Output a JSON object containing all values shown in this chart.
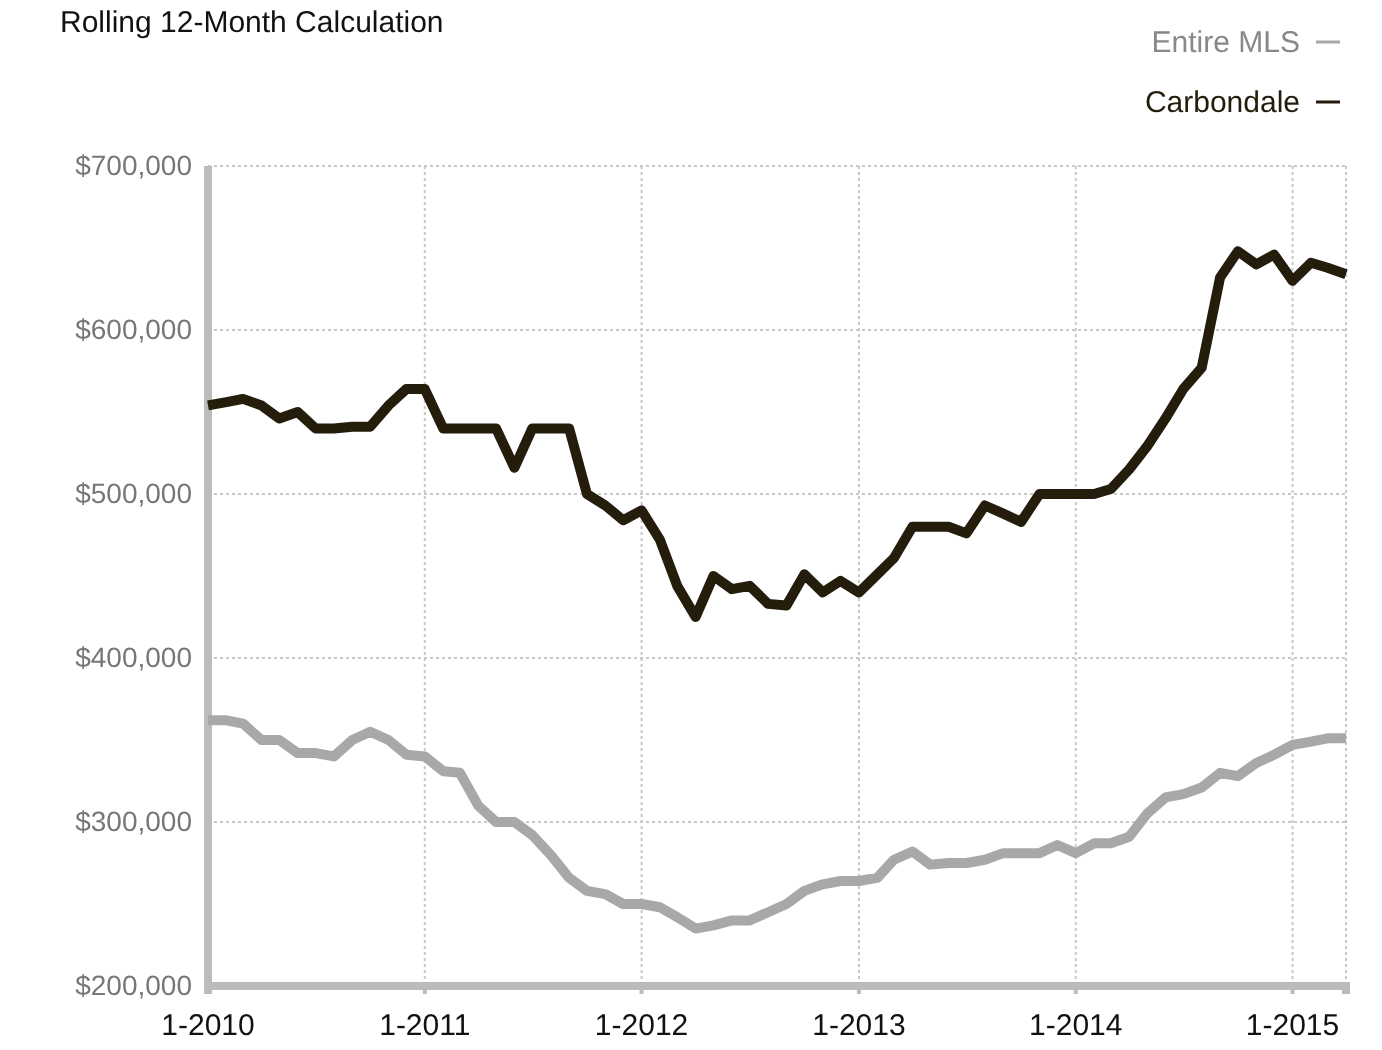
{
  "chart_data": {
    "type": "line",
    "title": "Rolling 12-Month Calculation",
    "x": [
      "2010-01",
      "2010-02",
      "2010-03",
      "2010-04",
      "2010-05",
      "2010-06",
      "2010-07",
      "2010-08",
      "2010-09",
      "2010-10",
      "2010-11",
      "2010-12",
      "2011-01",
      "2011-02",
      "2011-03",
      "2011-04",
      "2011-05",
      "2011-06",
      "2011-07",
      "2011-08",
      "2011-09",
      "2011-10",
      "2011-11",
      "2011-12",
      "2012-01",
      "2012-02",
      "2012-03",
      "2012-04",
      "2012-05",
      "2012-06",
      "2012-07",
      "2012-08",
      "2012-09",
      "2012-10",
      "2012-11",
      "2012-12",
      "2013-01",
      "2013-02",
      "2013-03",
      "2013-04",
      "2013-05",
      "2013-06",
      "2013-07",
      "2013-08",
      "2013-09",
      "2013-10",
      "2013-11",
      "2013-12",
      "2014-01",
      "2014-02",
      "2014-03",
      "2014-04",
      "2014-05",
      "2014-06",
      "2014-07",
      "2014-08",
      "2014-09",
      "2014-10",
      "2014-11",
      "2014-12",
      "2015-01",
      "2015-02",
      "2015-03",
      "2015-04"
    ],
    "series": [
      {
        "name": "Entire MLS",
        "color": "#a8a8a8",
        "values": [
          362000,
          362000,
          360000,
          350000,
          350000,
          342000,
          342000,
          340000,
          350000,
          355000,
          350000,
          341000,
          340000,
          331000,
          330000,
          310000,
          300000,
          300000,
          292000,
          280000,
          266000,
          258000,
          256000,
          250000,
          250000,
          248000,
          242000,
          235000,
          237000,
          240000,
          240000,
          245000,
          250000,
          258000,
          262000,
          264000,
          264000,
          266000,
          277000,
          282000,
          274000,
          275000,
          275000,
          277000,
          281000,
          281000,
          281000,
          286000,
          281000,
          287000,
          287000,
          291000,
          305000,
          315000,
          317000,
          321000,
          330000,
          328000,
          336000,
          341000,
          347000,
          349000,
          351000,
          351000
        ]
      },
      {
        "name": "Carbondale",
        "color": "#241d0c",
        "values": [
          554000,
          556000,
          558000,
          554000,
          546000,
          550000,
          540000,
          540000,
          541000,
          541000,
          554000,
          564000,
          564000,
          540000,
          540000,
          540000,
          540000,
          516000,
          540000,
          540000,
          540000,
          500000,
          493000,
          484000,
          490000,
          472000,
          444000,
          425000,
          450000,
          442000,
          444000,
          433000,
          432000,
          451000,
          440000,
          447000,
          440000,
          451000,
          461000,
          480000,
          480000,
          480000,
          476000,
          493000,
          488000,
          483000,
          500000,
          500000,
          500000,
          500000,
          503000,
          515000,
          529000,
          546000,
          564000,
          577000,
          632000,
          648000,
          640000,
          646000,
          630000,
          641000,
          638000,
          634000
        ]
      }
    ],
    "xlim": [
      "2010-01",
      "2015-04"
    ],
    "xticks": [
      {
        "value": "2010-01",
        "label": "1-2010"
      },
      {
        "value": "2011-01",
        "label": "1-2011"
      },
      {
        "value": "2012-01",
        "label": "1-2012"
      },
      {
        "value": "2013-01",
        "label": "1-2013"
      },
      {
        "value": "2014-01",
        "label": "1-2014"
      },
      {
        "value": "2015-01",
        "label": "1-2015"
      }
    ],
    "ylim": [
      200000,
      700000
    ],
    "yticks": [
      {
        "value": 200000,
        "label": "$200,000"
      },
      {
        "value": 300000,
        "label": "$300,000"
      },
      {
        "value": 400000,
        "label": "$400,000"
      },
      {
        "value": 500000,
        "label": "$500,000"
      },
      {
        "value": 600000,
        "label": "$600,000"
      },
      {
        "value": 700000,
        "label": "$700,000"
      }
    ],
    "grid": true,
    "legend": "top right",
    "line_style": "solid",
    "marker": "none"
  }
}
